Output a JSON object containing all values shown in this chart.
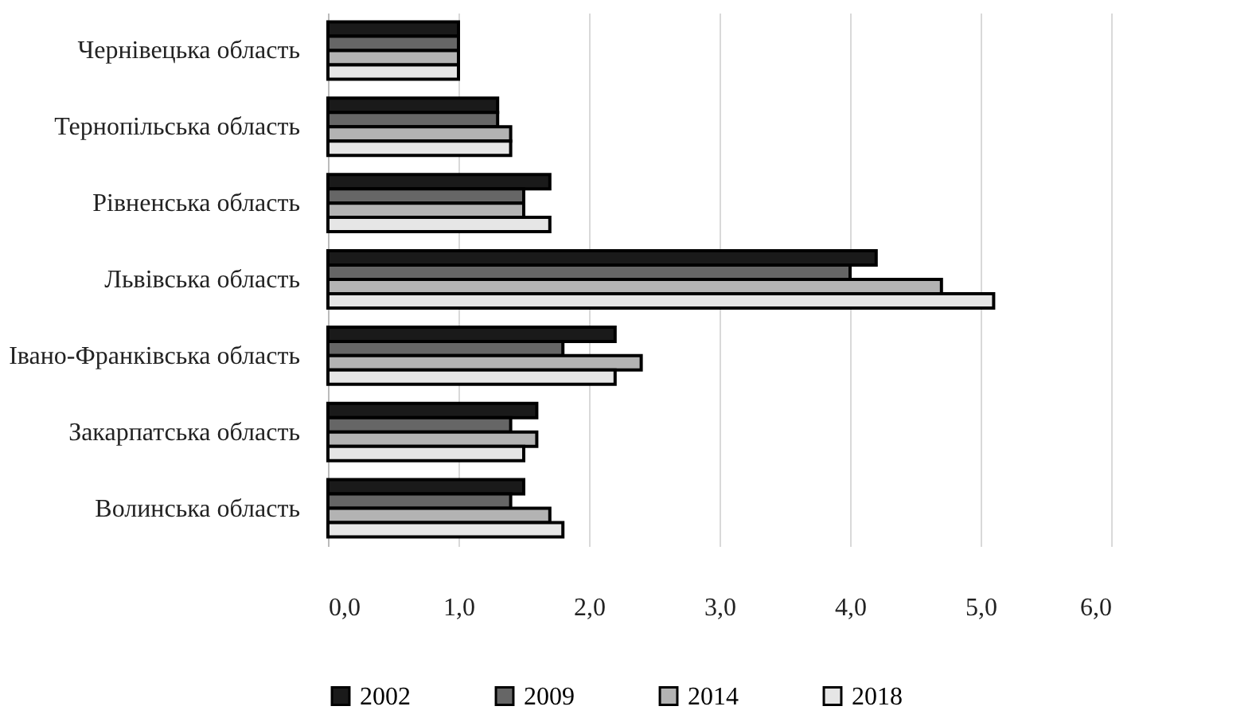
{
  "chart_data": {
    "type": "bar",
    "orientation": "horizontal",
    "categories": [
      "Чернівецька область",
      "Тернопільська область",
      "Рівненська область",
      "Львівська область",
      "Івано-Франківська область",
      "Закарпатська область",
      "Волинська область"
    ],
    "series": [
      {
        "name": "2002",
        "color": "#1a1a1a",
        "values": [
          1.0,
          1.3,
          1.7,
          4.2,
          2.2,
          1.6,
          1.5
        ]
      },
      {
        "name": "2009",
        "color": "#666666",
        "values": [
          1.0,
          1.3,
          1.5,
          4.0,
          1.8,
          1.4,
          1.4
        ]
      },
      {
        "name": "2014",
        "color": "#b3b3b3",
        "values": [
          1.0,
          1.4,
          1.5,
          4.7,
          2.4,
          1.6,
          1.7
        ]
      },
      {
        "name": "2018",
        "color": "#e6e6e6",
        "values": [
          1.0,
          1.4,
          1.7,
          5.1,
          2.2,
          1.5,
          1.8
        ]
      }
    ],
    "xlim": [
      0,
      6
    ],
    "xticks": [
      {
        "value": 0,
        "label": "0,0"
      },
      {
        "value": 1,
        "label": "1,0"
      },
      {
        "value": 2,
        "label": "2,0"
      },
      {
        "value": 3,
        "label": "3,0"
      },
      {
        "value": 4,
        "label": "4,0"
      },
      {
        "value": 5,
        "label": "5,0"
      },
      {
        "value": 6,
        "label": "6,0"
      }
    ],
    "grid": "x",
    "legend": "bottom"
  }
}
